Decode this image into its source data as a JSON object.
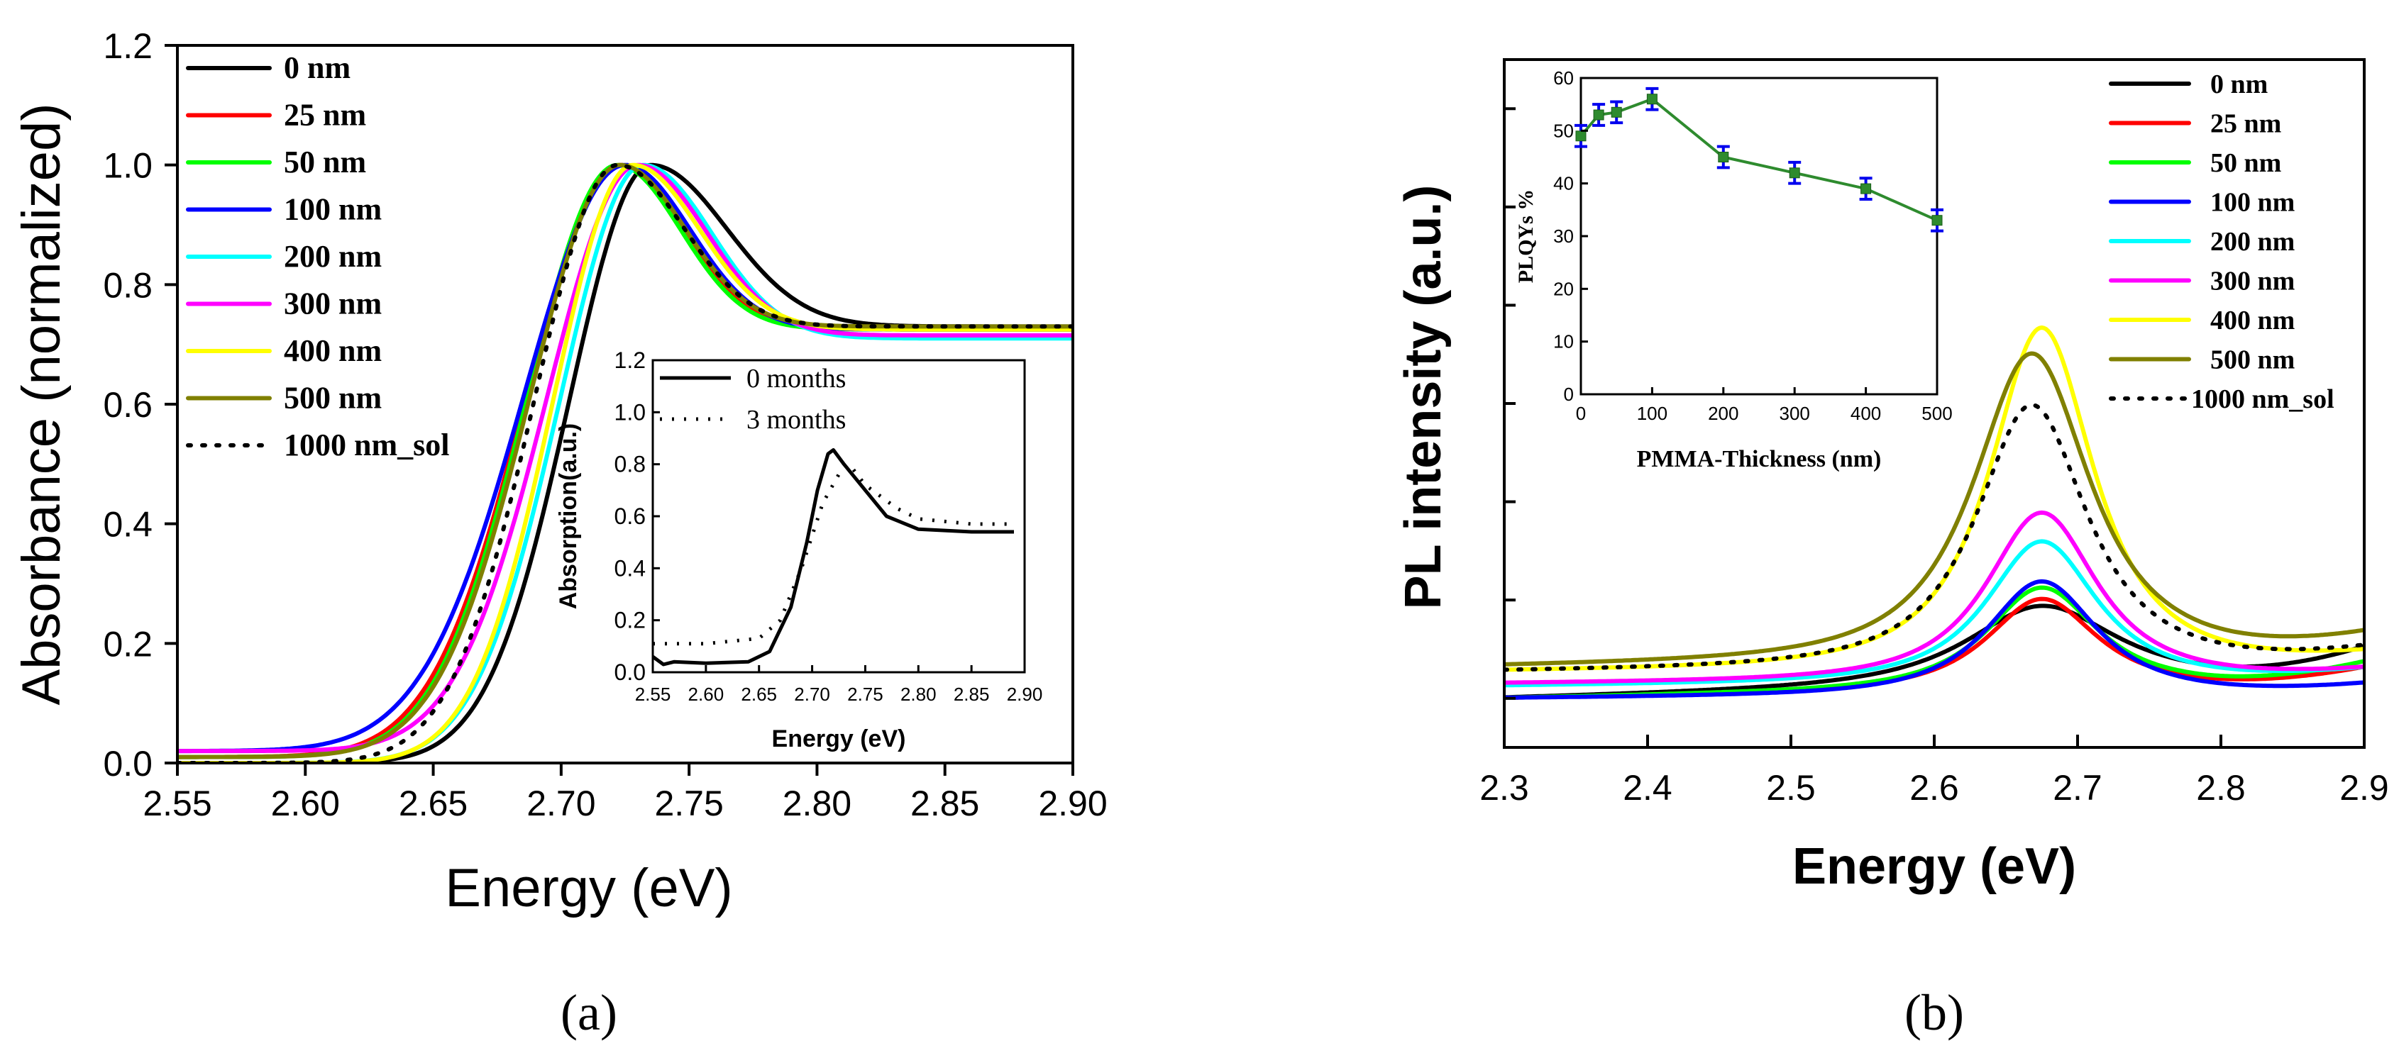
{
  "chart_data": [
    {
      "panel": "a",
      "type": "line",
      "caption": "(a)",
      "title": "",
      "xlabel": "Energy (eV)",
      "ylabel": "Absorbance (normalized)",
      "xlim": [
        2.55,
        2.9
      ],
      "ylim": [
        0.0,
        1.2
      ],
      "x_ticks": [
        "2.55",
        "2.60",
        "2.65",
        "2.70",
        "2.75",
        "2.80",
        "2.85",
        "2.90"
      ],
      "y_ticks": [
        "0.0",
        "0.2",
        "0.4",
        "0.6",
        "0.8",
        "1.0",
        "1.2"
      ],
      "legend": {
        "location": "top-left"
      },
      "series": [
        {
          "name": "0 nm",
          "color": "#000000",
          "dash": "solid",
          "peak": 2.735,
          "left_width": 0.045,
          "right_width": 0.042,
          "plateau": 0.73,
          "floor": 0.0
        },
        {
          "name": "25 nm",
          "color": "#ff0000",
          "dash": "solid",
          "peak": 2.723,
          "left_width": 0.052,
          "right_width": 0.036,
          "plateau": 0.725,
          "floor": 0.01
        },
        {
          "name": "50 nm",
          "color": "#00ff00",
          "dash": "solid",
          "peak": 2.722,
          "left_width": 0.05,
          "right_width": 0.035,
          "plateau": 0.725,
          "floor": 0.01
        },
        {
          "name": "100 nm",
          "color": "#0000ff",
          "dash": "solid",
          "peak": 2.725,
          "left_width": 0.056,
          "right_width": 0.036,
          "plateau": 0.725,
          "floor": 0.02
        },
        {
          "name": "200 nm",
          "color": "#00ffff",
          "dash": "solid",
          "peak": 2.732,
          "left_width": 0.046,
          "right_width": 0.038,
          "plateau": 0.71,
          "floor": 0.0
        },
        {
          "name": "300 nm",
          "color": "#ff00ff",
          "dash": "solid",
          "peak": 2.73,
          "left_width": 0.05,
          "right_width": 0.038,
          "plateau": 0.715,
          "floor": 0.02
        },
        {
          "name": "400 nm",
          "color": "#ffff00",
          "dash": "solid",
          "peak": 2.728,
          "left_width": 0.044,
          "right_width": 0.037,
          "plateau": 0.725,
          "floor": 0.0
        },
        {
          "name": "500 nm",
          "color": "#808000",
          "dash": "solid",
          "peak": 2.723,
          "left_width": 0.05,
          "right_width": 0.036,
          "plateau": 0.73,
          "floor": 0.01
        },
        {
          "name": "1000 nm_sol",
          "color": "#000000",
          "dash": "dotted",
          "peak": 2.722,
          "left_width": 0.046,
          "right_width": 0.037,
          "plateau": 0.73,
          "floor": 0.0
        }
      ],
      "inset": {
        "xlabel": "Energy (eV)",
        "ylabel": "Absorption(a.u.)",
        "xlim": [
          2.55,
          2.9
        ],
        "ylim": [
          0.0,
          1.2
        ],
        "x_ticks": [
          "2.55",
          "2.60",
          "2.65",
          "2.70",
          "2.75",
          "2.80",
          "2.85",
          "2.90"
        ],
        "y_ticks": [
          "0.0",
          "0.2",
          "0.4",
          "0.6",
          "0.8",
          "1.0",
          "1.2"
        ],
        "legend": {
          "location": "top-left"
        },
        "series": [
          {
            "name": "0 months",
            "color": "#000000",
            "dash": "solid",
            "points": [
              [
                2.55,
                0.06
              ],
              [
                2.56,
                0.03
              ],
              [
                2.57,
                0.04
              ],
              [
                2.6,
                0.035
              ],
              [
                2.64,
                0.04
              ],
              [
                2.66,
                0.08
              ],
              [
                2.68,
                0.25
              ],
              [
                2.695,
                0.5
              ],
              [
                2.705,
                0.7
              ],
              [
                2.715,
                0.84
              ],
              [
                2.72,
                0.855
              ],
              [
                2.73,
                0.8
              ],
              [
                2.75,
                0.7
              ],
              [
                2.77,
                0.6
              ],
              [
                2.8,
                0.55
              ],
              [
                2.85,
                0.54
              ],
              [
                2.89,
                0.54
              ]
            ]
          },
          {
            "name": "3 months",
            "color": "#000000",
            "dash": "dotted",
            "points": [
              [
                2.55,
                0.11
              ],
              [
                2.6,
                0.11
              ],
              [
                2.65,
                0.13
              ],
              [
                2.67,
                0.2
              ],
              [
                2.69,
                0.4
              ],
              [
                2.71,
                0.65
              ],
              [
                2.725,
                0.76
              ],
              [
                2.735,
                0.8
              ],
              [
                2.75,
                0.72
              ],
              [
                2.78,
                0.63
              ],
              [
                2.8,
                0.59
              ],
              [
                2.85,
                0.57
              ],
              [
                2.89,
                0.57
              ]
            ]
          }
        ]
      }
    },
    {
      "panel": "b",
      "type": "line",
      "caption": "(b)",
      "title": "",
      "xlabel": "Energy (eV)",
      "ylabel": "PL intensity (a.u.)",
      "xlim": [
        2.3,
        2.9
      ],
      "ylim": [
        -1.0,
        13.0
      ],
      "x_ticks": [
        "2.3",
        "2.4",
        "2.5",
        "2.6",
        "2.7",
        "2.8",
        "2.9"
      ],
      "y_ticks": [],
      "legend": {
        "location": "top-right"
      },
      "series": [
        {
          "name": "0 nm",
          "color": "#000000",
          "dash": "solid",
          "center": 2.675,
          "amp": 1.6,
          "width": 0.075,
          "base": 0.0,
          "tail": 0.9
        },
        {
          "name": "25 nm",
          "color": "#ff0000",
          "dash": "solid",
          "center": 2.675,
          "amp": 1.85,
          "width": 0.055,
          "base": 0.0,
          "tail": 0.55
        },
        {
          "name": "50 nm",
          "color": "#00ff00",
          "dash": "solid",
          "center": 2.675,
          "amp": 2.05,
          "width": 0.055,
          "base": 0.0,
          "tail": 0.65
        },
        {
          "name": "100 nm",
          "color": "#0000ff",
          "dash": "solid",
          "center": 2.675,
          "amp": 2.3,
          "width": 0.055,
          "base": 0.0,
          "tail": 0.25
        },
        {
          "name": "200 nm",
          "color": "#00ffff",
          "dash": "solid",
          "center": 2.675,
          "amp": 2.85,
          "width": 0.055,
          "base": 0.25,
          "tail": 0.55
        },
        {
          "name": "300 nm",
          "color": "#ff00ff",
          "dash": "solid",
          "center": 2.675,
          "amp": 3.4,
          "width": 0.055,
          "base": 0.3,
          "tail": 0.55
        },
        {
          "name": "400 nm",
          "color": "#ffff00",
          "dash": "solid",
          "center": 2.675,
          "amp": 6.9,
          "width": 0.052,
          "base": 0.55,
          "tail": 0.85
        },
        {
          "name": "500 nm",
          "color": "#808000",
          "dash": "solid",
          "center": 2.668,
          "amp": 6.2,
          "width": 0.058,
          "base": 0.65,
          "tail": 1.2
        },
        {
          "name": "1000 nm_sol",
          "color": "#000000",
          "dash": "dotted",
          "center": 2.668,
          "amp": 5.3,
          "width": 0.055,
          "base": 0.55,
          "tail": 0.95
        }
      ],
      "inset": {
        "xlabel": "PMMA-Thickness (nm)",
        "ylabel": "PLQYs %",
        "xlim": [
          0,
          500
        ],
        "ylim": [
          0,
          60
        ],
        "x_ticks": [
          "0",
          "100",
          "200",
          "300",
          "400",
          "500"
        ],
        "y_ticks": [
          "0",
          "10",
          "20",
          "30",
          "40",
          "50",
          "60"
        ],
        "line_color": "#2e8b2e",
        "marker_color": "#2e8b2e",
        "errorbar_color": "#0000ee",
        "x": [
          0,
          25,
          50,
          100,
          200,
          300,
          400,
          500
        ],
        "y": [
          49,
          53,
          53.5,
          56,
          45,
          42,
          39,
          33
        ],
        "err": [
          2,
          2,
          2,
          2,
          2,
          2,
          2,
          2
        ]
      }
    }
  ]
}
